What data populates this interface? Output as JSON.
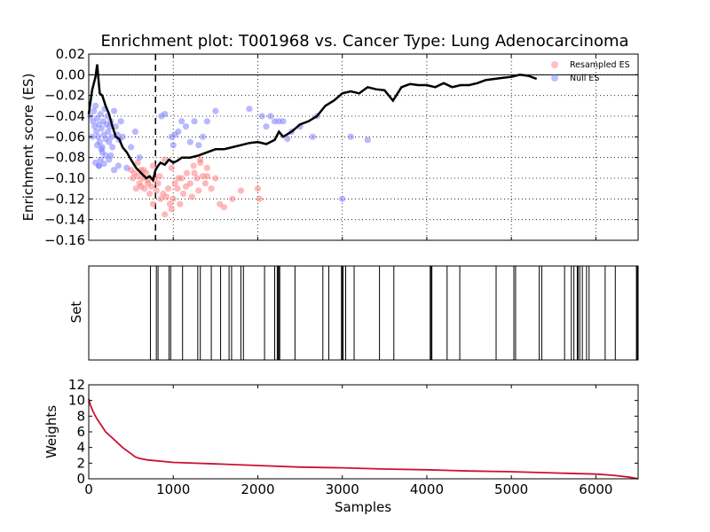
{
  "chart_data": [
    {
      "type": "scatter",
      "title": "Enrichment plot: T001968 vs. Cancer Type: Lung Adenocarcinoma",
      "xlabel": "",
      "ylabel": "Enrichment score (ES)",
      "xlim": [
        0,
        6500
      ],
      "ylim": [
        -0.16,
        0.02
      ],
      "xticks": [
        0,
        1000,
        2000,
        3000,
        4000,
        5000,
        6000
      ],
      "yticks": [
        0.02,
        0.0,
        -0.02,
        -0.04,
        -0.06,
        -0.08,
        -0.1,
        -0.12,
        -0.14,
        -0.16
      ],
      "ytick_labels": [
        "0.02",
        "0.00",
        "−0.02",
        "−0.04",
        "−0.06",
        "−0.08",
        "−0.10",
        "−0.12",
        "−0.14",
        "−0.16"
      ],
      "grid": true,
      "legend_placement": "top-right",
      "zero_line": 0,
      "leading_edge_x": 790,
      "es_curve": {
        "color": "#000000",
        "x": [
          0,
          40,
          80,
          100,
          115,
          130,
          160,
          200,
          240,
          280,
          320,
          360,
          400,
          450,
          500,
          560,
          620,
          680,
          720,
          760,
          790,
          820,
          850,
          900,
          950,
          1000,
          1050,
          1100,
          1200,
          1300,
          1400,
          1500,
          1600,
          1700,
          1800,
          1900,
          2000,
          2100,
          2200,
          2250,
          2300,
          2400,
          2500,
          2600,
          2700,
          2800,
          2900,
          3000,
          3100,
          3200,
          3300,
          3400,
          3500,
          3600,
          3700,
          3800,
          3900,
          4000,
          4100,
          4200,
          4300,
          4400,
          4500,
          4600,
          4700,
          4800,
          4900,
          5000,
          5100,
          5200,
          5300
        ],
        "y": [
          -0.038,
          -0.015,
          -0.002,
          0.01,
          -0.005,
          -0.018,
          -0.02,
          -0.03,
          -0.038,
          -0.05,
          -0.06,
          -0.062,
          -0.07,
          -0.075,
          -0.082,
          -0.09,
          -0.095,
          -0.1,
          -0.098,
          -0.102,
          -0.092,
          -0.088,
          -0.085,
          -0.087,
          -0.082,
          -0.085,
          -0.083,
          -0.08,
          -0.08,
          -0.078,
          -0.075,
          -0.072,
          -0.072,
          -0.07,
          -0.068,
          -0.066,
          -0.065,
          -0.067,
          -0.063,
          -0.055,
          -0.06,
          -0.055,
          -0.048,
          -0.045,
          -0.04,
          -0.03,
          -0.025,
          -0.018,
          -0.016,
          -0.018,
          -0.012,
          -0.014,
          -0.015,
          -0.025,
          -0.012,
          -0.009,
          -0.01,
          -0.01,
          -0.012,
          -0.008,
          -0.012,
          -0.01,
          -0.01,
          -0.008,
          -0.005,
          -0.004,
          -0.003,
          -0.002,
          0.0,
          -0.001,
          -0.004
        ]
      },
      "series": [
        {
          "name": "Resampled ES",
          "color": "#ff8080",
          "x": [
            500,
            520,
            540,
            560,
            580,
            600,
            620,
            640,
            650,
            660,
            680,
            700,
            720,
            740,
            760,
            780,
            800,
            820,
            850,
            880,
            900,
            920,
            940,
            960,
            980,
            1000,
            1020,
            1050,
            1080,
            1100,
            1120,
            1150,
            1200,
            1220,
            1250,
            1280,
            1300,
            1320,
            1350,
            1380,
            1400,
            1450,
            1500,
            1550,
            1600,
            1700,
            1800,
            2000,
            2020,
            580,
            620,
            700,
            760,
            840,
            900,
            980,
            1060,
            1160,
            1240,
            1320,
            1400
          ],
          "y": [
            -0.092,
            -0.1,
            -0.095,
            -0.11,
            -0.098,
            -0.105,
            -0.108,
            -0.1,
            -0.092,
            -0.11,
            -0.095,
            -0.102,
            -0.115,
            -0.108,
            -0.125,
            -0.1,
            -0.112,
            -0.105,
            -0.12,
            -0.115,
            -0.135,
            -0.118,
            -0.11,
            -0.125,
            -0.13,
            -0.12,
            -0.105,
            -0.11,
            -0.125,
            -0.1,
            -0.115,
            -0.108,
            -0.105,
            -0.118,
            -0.095,
            -0.1,
            -0.112,
            -0.085,
            -0.098,
            -0.105,
            -0.09,
            -0.11,
            -0.1,
            -0.125,
            -0.128,
            -0.12,
            -0.112,
            -0.11,
            -0.12,
            -0.085,
            -0.092,
            -0.105,
            -0.088,
            -0.098,
            -0.082,
            -0.09,
            -0.1,
            -0.095,
            -0.088,
            -0.082,
            -0.098
          ]
        },
        {
          "name": "Null ES",
          "color": "#8080ff",
          "x": [
            20,
            40,
            50,
            60,
            70,
            80,
            90,
            100,
            110,
            120,
            130,
            140,
            150,
            160,
            170,
            180,
            190,
            200,
            210,
            220,
            230,
            240,
            250,
            260,
            270,
            280,
            300,
            320,
            340,
            360,
            380,
            400,
            450,
            500,
            550,
            600,
            860,
            900,
            980,
            1000,
            1020,
            1060,
            1100,
            1150,
            1200,
            1250,
            1300,
            1350,
            1400,
            1500,
            1900,
            2050,
            2100,
            2150,
            2200,
            2250,
            2300,
            2350,
            2400,
            2500,
            2650,
            2700,
            3000,
            3100,
            3300,
            80,
            120,
            160,
            200,
            240,
            100,
            150,
            180,
            260,
            300,
            350,
            120,
            140
          ],
          "y": [
            -0.04,
            -0.06,
            -0.045,
            -0.035,
            -0.05,
            -0.03,
            -0.055,
            -0.042,
            -0.06,
            -0.048,
            -0.065,
            -0.038,
            -0.052,
            -0.07,
            -0.045,
            -0.058,
            -0.033,
            -0.062,
            -0.048,
            -0.04,
            -0.055,
            -0.065,
            -0.05,
            -0.045,
            -0.06,
            -0.07,
            -0.035,
            -0.05,
            -0.058,
            -0.063,
            -0.045,
            -0.06,
            -0.09,
            -0.07,
            -0.055,
            -0.08,
            -0.04,
            -0.038,
            -0.06,
            -0.068,
            -0.058,
            -0.055,
            -0.045,
            -0.05,
            -0.065,
            -0.045,
            -0.068,
            -0.06,
            -0.045,
            -0.035,
            -0.033,
            -0.04,
            -0.05,
            -0.04,
            -0.045,
            -0.045,
            -0.045,
            -0.062,
            -0.055,
            -0.05,
            -0.06,
            -0.04,
            -0.12,
            -0.06,
            -0.063,
            -0.085,
            -0.088,
            -0.075,
            -0.078,
            -0.082,
            -0.068,
            -0.072,
            -0.086,
            -0.078,
            -0.092,
            -0.088,
            -0.088,
            -0.082
          ]
        }
      ]
    },
    {
      "type": "barcode",
      "title": "",
      "xlabel": "",
      "ylabel": "Set",
      "xlim": [
        0,
        6500
      ],
      "positions": [
        730,
        800,
        820,
        950,
        970,
        1110,
        1290,
        1320,
        1450,
        1560,
        1660,
        1690,
        1800,
        1830,
        2080,
        2200,
        2230,
        2240,
        2250,
        2260,
        2440,
        2770,
        2840,
        2990,
        3000,
        3010,
        3040,
        3140,
        3440,
        3610,
        4040,
        4050,
        4060,
        4240,
        4390,
        4820,
        5030,
        5050,
        5330,
        5360,
        5630,
        5710,
        5740,
        5780,
        5790,
        5810,
        5840,
        5890,
        5920,
        6110,
        6230,
        6480,
        6490
      ]
    },
    {
      "type": "area",
      "title": "",
      "xlabel": "Samples",
      "ylabel": "Weights",
      "xlim": [
        0,
        6500
      ],
      "ylim": [
        0,
        12
      ],
      "xticks": [
        0,
        1000,
        2000,
        3000,
        4000,
        5000,
        6000
      ],
      "yticks": [
        0,
        2,
        4,
        6,
        8,
        10,
        12
      ],
      "color": "#cc1133",
      "x": [
        0,
        20,
        50,
        100,
        150,
        200,
        300,
        400,
        500,
        550,
        600,
        700,
        800,
        1000,
        1500,
        2000,
        2500,
        3000,
        3500,
        4000,
        4500,
        5000,
        5500,
        6000,
        6200,
        6400,
        6500
      ],
      "y": [
        10.2,
        9.4,
        8.6,
        7.6,
        6.8,
        6.0,
        5.0,
        4.0,
        3.2,
        2.8,
        2.6,
        2.4,
        2.3,
        2.1,
        1.9,
        1.7,
        1.5,
        1.4,
        1.25,
        1.15,
        1.0,
        0.9,
        0.75,
        0.6,
        0.45,
        0.2,
        0.0
      ]
    }
  ]
}
